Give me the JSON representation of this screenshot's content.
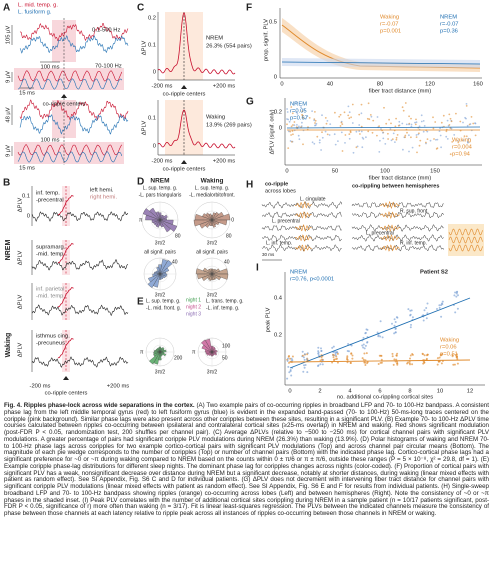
{
  "figure": {
    "A": {
      "texts": [
        "A",
        "L. mid. temp. g.",
        "L. fusiform g.",
        "105 µV",
        "100 ms",
        "0.1-500 Hz",
        "9 µV",
        "70-100 Hz",
        "15 ms",
        "co-ripple centers",
        "48 µV",
        "100 ms",
        "9 µV",
        "15 ms"
      ]
    },
    "B": {
      "texts": [
        "B",
        "ΔPLV",
        "0.1",
        "0",
        "inf. temp.",
        "-precentral",
        "left hemi.",
        "right hemi.",
        "NREM",
        "ΔPLV",
        "supramarg.",
        "-mid. temp.",
        "ΔPLV",
        "inf. parietal",
        "-mid. temp.",
        "Waking",
        "ΔPLV",
        "isthmus cing.",
        "-precuneus",
        "-200 ms",
        "co-ripple centers",
        "+200 ms"
      ]
    },
    "C": {
      "texts": [
        "C",
        "NREM",
        "26.3% (554 pairs)",
        "ΔPLV",
        "0.2",
        "0.1",
        "0",
        "-200 ms",
        "co-ripple centers",
        "+200 ms",
        "Waking",
        "13.9% (269 pairs)",
        "ΔPLV",
        "0.1",
        "0",
        "-200 ms",
        "co-ripple centers",
        "+200 ms"
      ]
    },
    "D": {
      "texts": [
        "D",
        "NREM",
        "Waking",
        "L. sup. temp. g.",
        "-L. pars triangularis",
        "L. sup. temp. g.",
        "-L. medialorbitofront.",
        "π",
        "0",
        "80",
        "80",
        "3π/2",
        "3π/2",
        "all signif. pairs",
        "all signif. pairs",
        "40",
        "40",
        "3π/2",
        "3π/2"
      ]
    },
    "E": {
      "texts": [
        "E",
        "L. sup. temp. g.",
        "-L. mid. front. g.",
        "night 1",
        "night 2",
        "night 3",
        "L. trans. temp. g.",
        "-L. inf. temp. g.",
        "π",
        "200",
        "π",
        "100",
        "50",
        "3π/2",
        "3π/2"
      ]
    },
    "F": {
      "texts": [
        "F",
        "prop. signif. PLV",
        "0.5",
        "0",
        "Waking",
        "r=-0.07",
        "p=0.001",
        "NREM",
        "r=-0.07",
        "p=0.36",
        "0",
        "40",
        "80",
        "120",
        "160",
        "fiber tract distance (mm)"
      ]
    },
    "G": {
      "texts": [
        "G",
        "ΔPLV (signif. only)",
        "0.2",
        "0",
        "NREM",
        "r=0.05",
        "p=0.67",
        "Waking",
        "r=0.004",
        "p=0.94",
        "0",
        "50",
        "100",
        "150",
        "fiber tract distance (mm)"
      ]
    },
    "H": {
      "texts": [
        "H",
        "co-ripple",
        "across lobes",
        "co-rippling between hemispheres",
        "L. cingulate",
        "L. precentral",
        "L. inf. temp.",
        "R. sup. front.",
        "L. precentral",
        "R. inf. temp.",
        "30 ms"
      ]
    },
    "I": {
      "texts": [
        "I",
        "NREM",
        "r=0.76, p<0.0001",
        "Patient S2",
        "peak PLV",
        "0.4",
        "0.2",
        "Waking",
        "r=0.06",
        "p=0.51",
        "0",
        "2",
        "4",
        "6",
        "8",
        "10",
        "12",
        "no. additional co-rippling cortical sites"
      ]
    }
  },
  "caption": {
    "label": "Fig. 4.",
    "title": "Ripples phase-lock across wide separations in the cortex.",
    "text": "(A) Two example pairs of co-occurring ripples in broadband LFP and 70- to 100-Hz bandpass. A consistent phase lag from the left middle temporal gyrus (red) to left fusiform gyrus (blue) is evident in the expanded band-passed (70- to 100-Hz) 50-ms-long traces centered on the coripple (pink background). Similar phase lags were also present across other coripples between these sites, resulting in a significant PLV. (B) Example 70- to 100-Hz ΔPLV time courses calculated between ripples co-occurring between ipsilateral and contralateral cortical sites (≥25-ms overlap) in NREM and waking. Red shows significant modulation (post-FDR P < 0.05, randomization test, 200 shuffles per channel pair). (C) Average ΔPLVs (relative to −500 to −250 ms) for cortical channel pairs with significant PLV modulations. A greater percentage of pairs had significant coripple PLV modulations during NREM (26.3%) than waking (13.9%). (D) Polar histograms of waking and NREM 70- to 100-Hz phase lags across coripples for two example cortico-cortical pairs with significant PLV modulations (Top) and across channel pair circular means (Bottom). The magnitude of each pie wedge corresponds to the number of coripples (Top) or number of channel pairs (Bottom) with the indicated phase lag. Cortico-cortical phase lags had a significant preference for ~0 or ~π during waking compared to NREM based on the counts within 0 ± π/6 or π ± π/6, outside these ranges (P = 5 × 10⁻⁸, χ² = 29.8, df = 1). (E) Example coripple phase-lag distributions for different sleep nights. The dominant phase lag for coripples changes across nights (color-coded). (F) Proportion of cortical pairs with significant PLV has a weak, nonsignificant decrease over distance during NREM but a significant decrease, notably at shorter distances, during waking (linear mixed effects with patient as random effect). See SI Appendix, Fig. S6 C and D for individual patients. (G) ΔPLV does not decrement with intervening fiber tract distance for channel pairs with significant coripple PLV modulations (linear mixed effects with patient as random effect). See SI Appendix, Fig. S6 E and F for results from individual patients. (H) Single-sweep broadband LFP and 70- to 100-Hz bandpass showing ripples (orange) co-occurring across lobes (Left) and between hemispheres (Right). Note the consistency of ~0 or ~π phases in the shaded inset. (I) Peak PLV correlates with the number of additional cortical sites corippling during NREM in a sample patient (n = 10/17 patients significant, post-FDR P < 0.05, significance of r) more often than waking (n = 3/17). Fit is linear least-squares regression. The PLVs between the indicated channels measure the consistency of phase between those channels at each latency relative to ripple peak across all instances of ripples co-occurring between those channels in NREM or waking."
  }
}
